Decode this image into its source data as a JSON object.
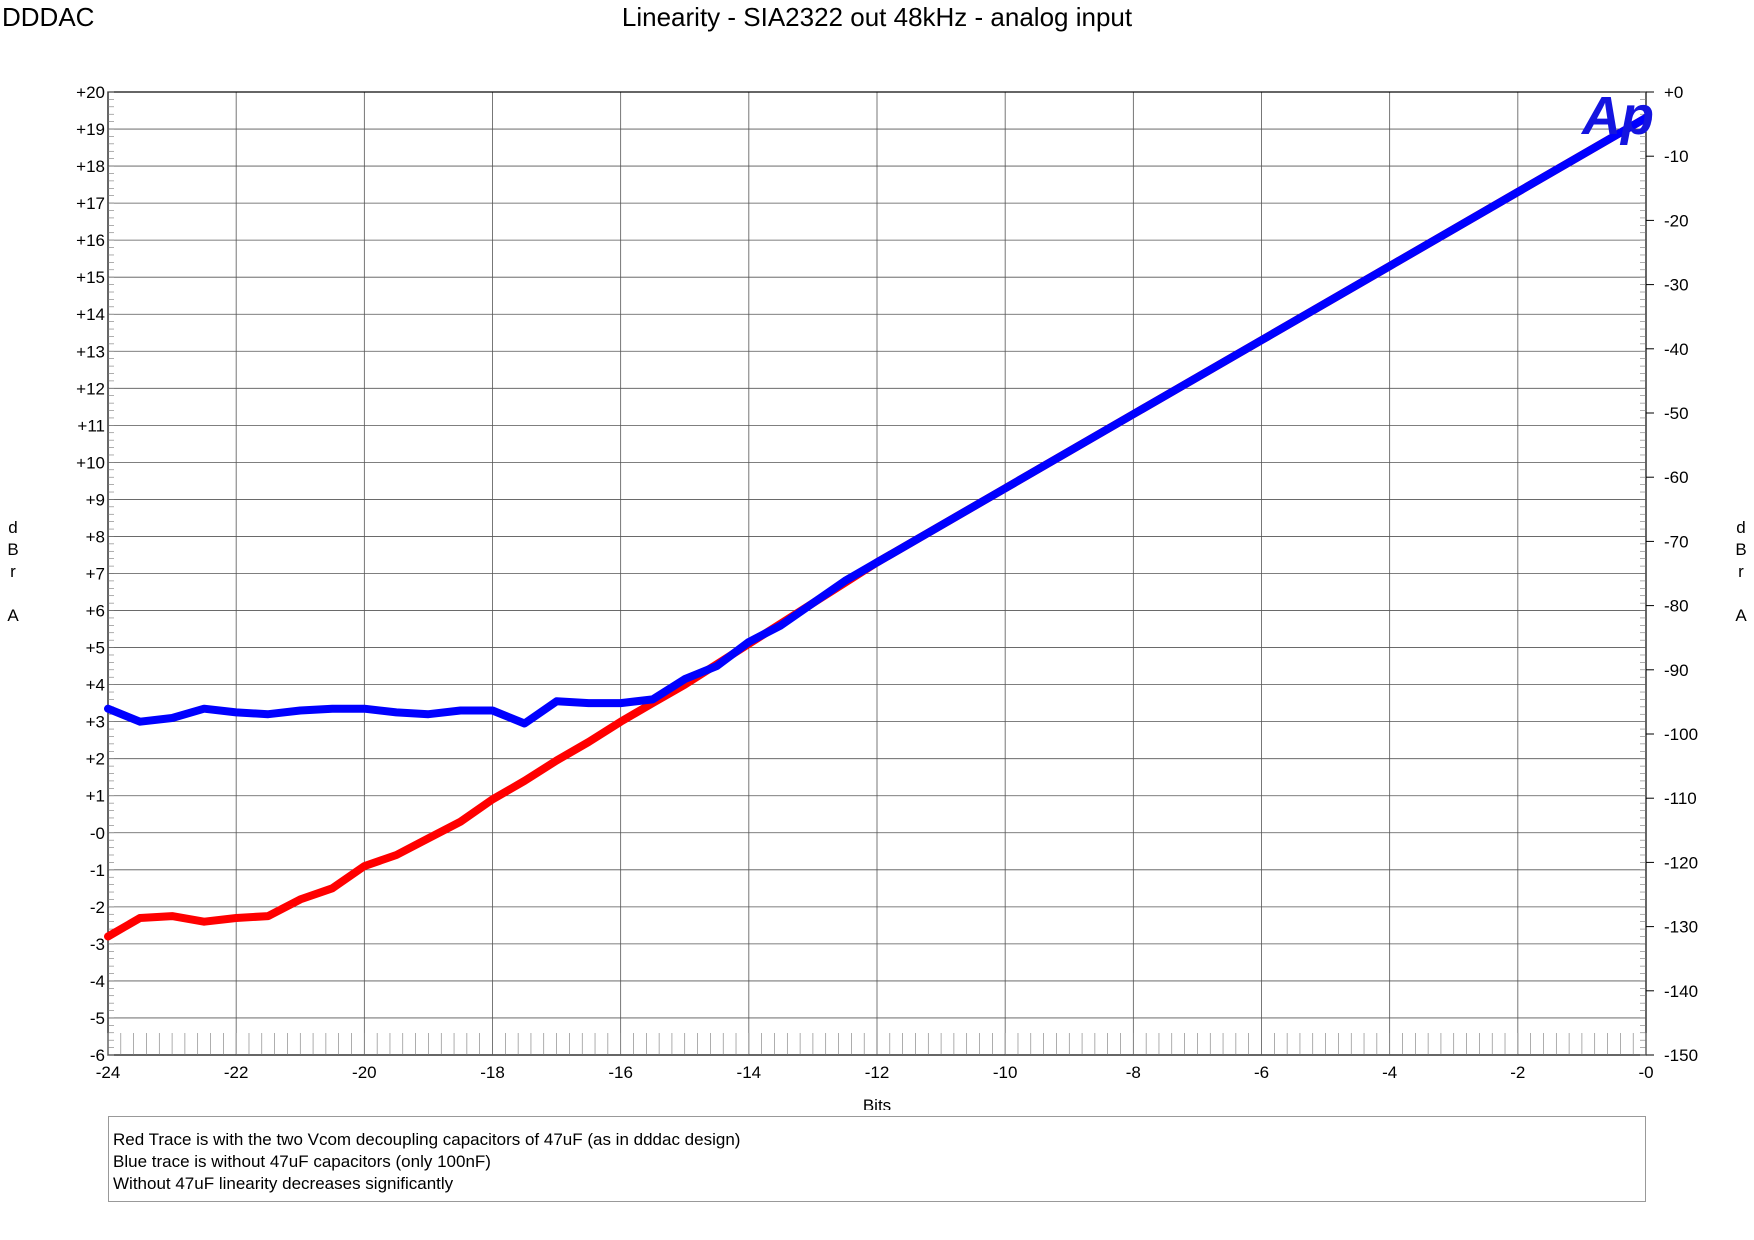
{
  "header": {
    "brand": "DDDAC",
    "title": "Linearity - SIA2322 out 48kHz - analog input"
  },
  "chart_data": {
    "type": "line",
    "title": "Linearity - SIA2322 out 48kHz - analog input",
    "xlabel": "Bits",
    "ylabel": "dBr A",
    "y2label": "dBr A",
    "xlim": [
      -24,
      0
    ],
    "ylim": [
      -6,
      20
    ],
    "y2lim": [
      -150,
      0
    ],
    "grid": true,
    "x_tick_labels": [
      "-24",
      "-22",
      "-20",
      "-18",
      "-16",
      "-14",
      "-12",
      "-10",
      "-8",
      "-6",
      "-4",
      "-2",
      "-0"
    ],
    "y_tick_labels": [
      "-6",
      "-5",
      "-4",
      "-3",
      "-2",
      "-1",
      "-0",
      "+1",
      "+2",
      "+3",
      "+4",
      "+5",
      "+6",
      "+7",
      "+8",
      "+9",
      "+10",
      "+11",
      "+12",
      "+13",
      "+14",
      "+15",
      "+16",
      "+17",
      "+18",
      "+19",
      "+20"
    ],
    "y2_tick_labels": [
      "-150",
      "-140",
      "-130",
      "-120",
      "-110",
      "-100",
      "-90",
      "-80",
      "-70",
      "-60",
      "-50",
      "-40",
      "-30",
      "-20",
      "-10",
      "+0"
    ],
    "series": [
      {
        "color": "#ff0000",
        "x": [
          -24,
          -23.5,
          -23,
          -22.5,
          -22,
          -21.5,
          -21,
          -20.5,
          -20,
          -19.5,
          -19,
          -18.5,
          -18,
          -17.5,
          -17,
          -16.5,
          -16,
          -15.5,
          -15,
          -14.5,
          -14,
          -13.5,
          -13,
          -12.5,
          -12,
          -10,
          -8,
          -6,
          -4,
          -2,
          0
        ],
        "values": [
          -2.8,
          -2.3,
          -2.25,
          -2.4,
          -2.3,
          -2.25,
          -1.8,
          -1.5,
          -0.9,
          -0.6,
          -0.15,
          0.3,
          0.9,
          1.4,
          1.95,
          2.45,
          3.0,
          3.5,
          4.0,
          4.55,
          5.1,
          5.65,
          6.2,
          6.75,
          7.3,
          9.3,
          11.3,
          13.3,
          15.3,
          17.3,
          19.3
        ]
      },
      {
        "color": "#0000ff",
        "x": [
          -24,
          -23.5,
          -23,
          -22.5,
          -22,
          -21.5,
          -21,
          -20.5,
          -20,
          -19.5,
          -19,
          -18.5,
          -18,
          -17.5,
          -17,
          -16.5,
          -16,
          -15.5,
          -15,
          -14.5,
          -14,
          -13.5,
          -13,
          -12.5,
          -12,
          -10,
          -8,
          -6,
          -4,
          -2,
          0
        ],
        "values": [
          3.35,
          3.0,
          3.1,
          3.35,
          3.25,
          3.2,
          3.3,
          3.35,
          3.35,
          3.25,
          3.2,
          3.3,
          3.3,
          2.95,
          3.55,
          3.5,
          3.5,
          3.6,
          4.15,
          4.5,
          5.15,
          5.6,
          6.2,
          6.8,
          7.3,
          9.3,
          11.3,
          13.3,
          15.3,
          17.3,
          19.3
        ]
      }
    ],
    "logo_text": "Ap"
  },
  "notes": {
    "lines": [
      "Red Trace is with the two Vcom decoupling capacitors of 47uF (as in dddac design)",
      "Blue trace is without 47uF capacitors (only 100nF)",
      "Without 47uF linearity decreases significantly"
    ]
  }
}
